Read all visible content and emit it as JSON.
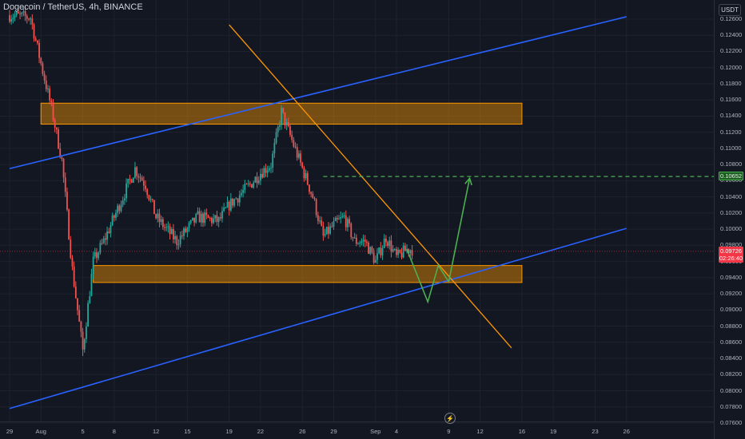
{
  "header": {
    "symbol_title": "Dogecoin / TetherUS, 4h, BINANCE",
    "currency": "USDT"
  },
  "icons": {
    "flash": "lightning-icon"
  },
  "colors": {
    "background": "#131722",
    "grid": "#1e222d",
    "up": "#26a69a",
    "down": "#ef5350",
    "channel": "#2962ff",
    "trend": "#ff9800",
    "zone": "#ff9800",
    "projection": "#4caf50",
    "current_line": "#f23645"
  },
  "price_tags": {
    "target": "0.10652",
    "current": "0.09726",
    "countdown": "02:26:40"
  },
  "chart_data": {
    "type": "candlestick",
    "title": "Dogecoin / TetherUS, 4h, BINANCE",
    "xlabel": "",
    "ylabel": "",
    "ylim": [
      0.0758,
      0.127
    ],
    "grid": true,
    "x_tick_labels": [
      "29",
      "Aug",
      "5",
      "8",
      "12",
      "15",
      "19",
      "22",
      "26",
      "29",
      "Sep",
      "4",
      "9",
      "12",
      "16",
      "19",
      "23",
      "26"
    ],
    "y_tick_labels": [
      "0.12600",
      "0.12400",
      "0.12200",
      "0.12000",
      "0.11800",
      "0.11600",
      "0.11400",
      "0.11200",
      "0.11000",
      "0.10800",
      "0.10600",
      "0.10400",
      "0.10200",
      "0.10000",
      "0.09800",
      "0.09600",
      "0.09400",
      "0.09200",
      "0.09000",
      "0.08800",
      "0.08600",
      "0.08400",
      "0.08200",
      "0.08000",
      "0.07800",
      "0.07600"
    ],
    "anchors": [
      [
        "Jul 29",
        0.1265
      ],
      [
        "Jul 31",
        0.1262
      ],
      [
        "Aug 1",
        0.1205
      ],
      [
        "Aug 2",
        0.115
      ],
      [
        "Aug 3",
        0.1085
      ],
      [
        "Aug 4",
        0.095
      ],
      [
        "Aug 5",
        0.085
      ],
      [
        "Aug 6",
        0.096
      ],
      [
        "Aug 7",
        0.0985
      ],
      [
        "Aug 8",
        0.1015
      ],
      [
        "Aug 10",
        0.1075
      ],
      [
        "Aug 11",
        0.1055
      ],
      [
        "Aug 12",
        0.1015
      ],
      [
        "Aug 14",
        0.0985
      ],
      [
        "Aug 16",
        0.1015
      ],
      [
        "Aug 18",
        0.101
      ],
      [
        "Aug 19",
        0.103
      ],
      [
        "Aug 21",
        0.1055
      ],
      [
        "Aug 22",
        0.107
      ],
      [
        "Aug 23",
        0.108
      ],
      [
        "Aug 24",
        0.1145
      ],
      [
        "Aug 25",
        0.111
      ],
      [
        "Aug 26",
        0.1075
      ],
      [
        "Aug 27",
        0.104
      ],
      [
        "Aug 28",
        0.099
      ],
      [
        "Aug 29",
        0.1005
      ],
      [
        "Aug 30",
        0.1015
      ],
      [
        "Aug 31",
        0.0985
      ],
      [
        "Sep 1",
        0.0985
      ],
      [
        "Sep 2",
        0.096
      ],
      [
        "Sep 3",
        0.099
      ],
      [
        "Sep 4",
        0.0965
      ],
      [
        "Sep 5",
        0.0975
      ]
    ],
    "last_price": 0.09726,
    "annotations": {
      "channel_upper": [
        [
          "Jul 29",
          0.1075
        ],
        [
          "Sep 26",
          0.1263
        ]
      ],
      "channel_lower": [
        [
          "Jul 29",
          0.0778
        ],
        [
          "Sep 26",
          0.1001
        ]
      ],
      "trendline": [
        [
          "Aug 19",
          0.1253
        ],
        [
          "Sep 15",
          0.0853
        ]
      ],
      "zone_upper": {
        "from": "Aug 1",
        "to": "Sep 16",
        "top": 0.1156,
        "bottom": 0.113
      },
      "zone_lower": {
        "from": "Aug 6",
        "to": "Sep 16",
        "top": 0.0955,
        "bottom": 0.0934
      },
      "target_level": {
        "from": "Aug 28",
        "price": 0.10652
      },
      "projection": [
        [
          "Sep 5",
          0.0975
        ],
        [
          "Sep 7",
          0.091
        ],
        [
          "Sep 8",
          0.0955
        ],
        [
          "Sep 9",
          0.0935
        ],
        [
          "Sep 11",
          0.1063
        ]
      ]
    }
  }
}
